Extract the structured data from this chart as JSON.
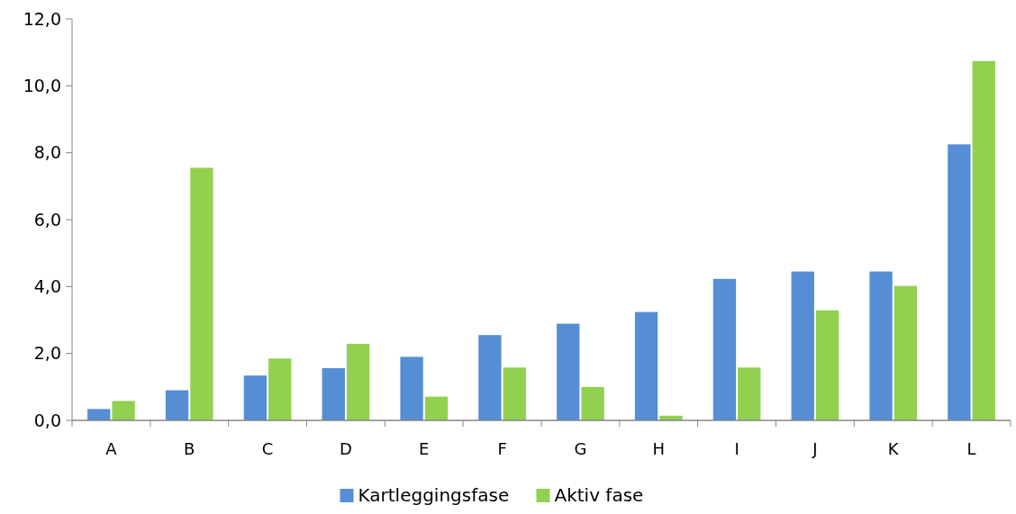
{
  "chart_data": {
    "type": "bar",
    "categories": [
      "A",
      "B",
      "C",
      "D",
      "E",
      "F",
      "G",
      "H",
      "I",
      "J",
      "K",
      "L"
    ],
    "series": [
      {
        "name": "Kartleggingsfase",
        "color": "#558ed5",
        "values": [
          0.34,
          0.9,
          1.34,
          1.56,
          1.9,
          2.55,
          2.89,
          3.24,
          4.23,
          4.45,
          4.45,
          8.25
        ]
      },
      {
        "name": "Aktiv fase",
        "color": "#92d050",
        "values": [
          0.58,
          7.55,
          1.85,
          2.29,
          0.71,
          1.58,
          1.0,
          0.14,
          1.58,
          3.29,
          4.02,
          10.74
        ]
      }
    ],
    "ylim": [
      0,
      12
    ],
    "yticks": [
      {
        "value": 0,
        "label": "0,0"
      },
      {
        "value": 2,
        "label": "2,0"
      },
      {
        "value": 4,
        "label": "4,0"
      },
      {
        "value": 6,
        "label": "6,0"
      },
      {
        "value": 8,
        "label": "8,0"
      },
      {
        "value": 10,
        "label": "10,0"
      },
      {
        "value": 12,
        "label": "12,0"
      }
    ],
    "legend": "bottom"
  }
}
